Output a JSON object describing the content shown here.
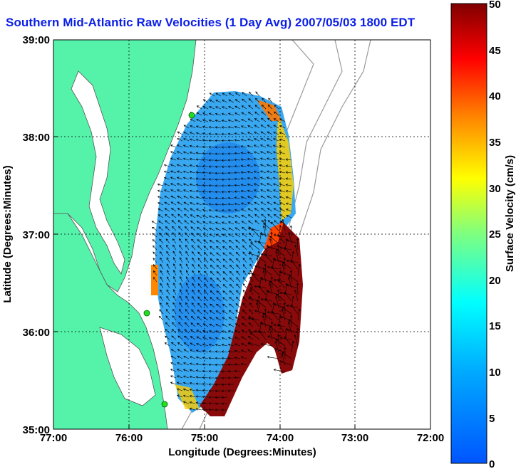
{
  "title": "Southern Mid-Atlantic Raw Velocities (1 Day Avg) 2007/05/03 1800 EDT",
  "x_axis": {
    "label": "Longitude (Degrees:Minutes)",
    "ticks": [
      "77:00",
      "76:00",
      "75:00",
      "74:00",
      "73:00",
      "72:00"
    ]
  },
  "y_axis": {
    "label": "Latitude (Degrees:Minutes)",
    "ticks": [
      "39:00",
      "38:00",
      "37:00",
      "36:00",
      "35:00"
    ]
  },
  "colorbar": {
    "label": "Surface Velocity (cm/s)",
    "ticks": [
      "50",
      "45",
      "40",
      "35",
      "30",
      "25",
      "20",
      "15",
      "10",
      "5",
      "0"
    ],
    "min": 0,
    "max": 50,
    "colormap": "jet"
  },
  "colors": {
    "land": "#55f3aa",
    "coastline": "#555555",
    "bathymetry": "#9a9a9a",
    "grid": "#000000",
    "title": "#0a1ee8",
    "station_marker": "#22dd22",
    "arrows": "#000000"
  }
}
